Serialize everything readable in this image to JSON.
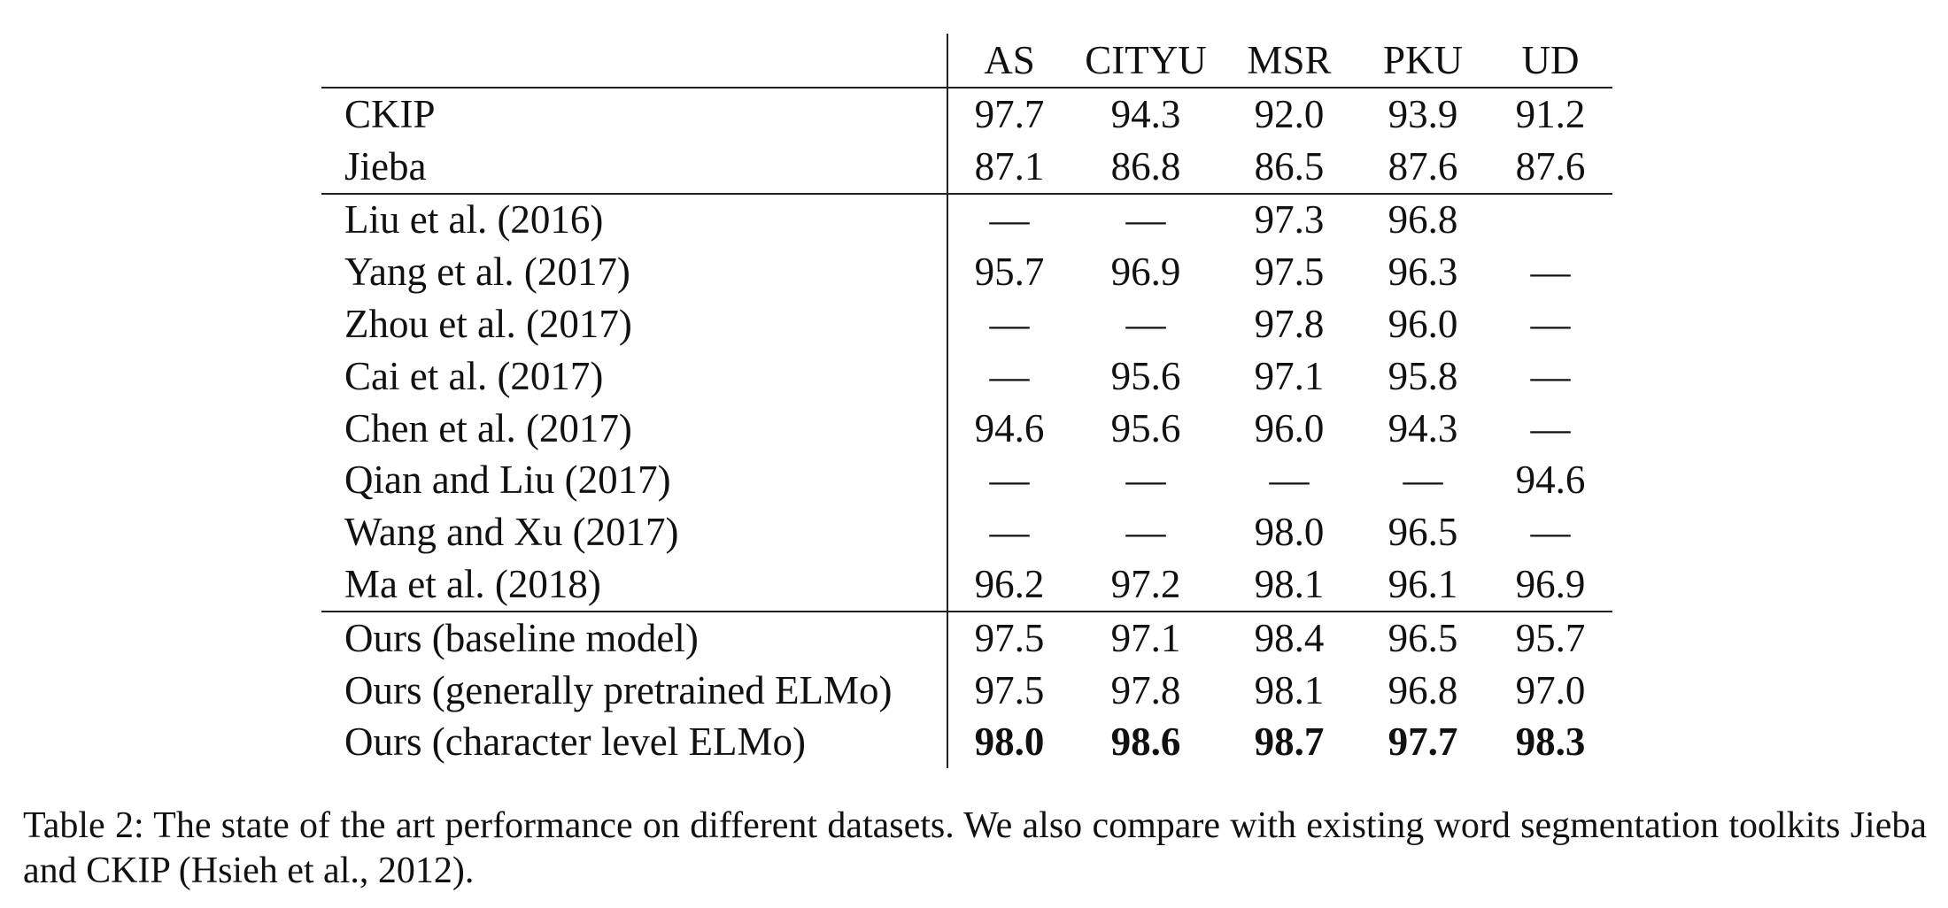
{
  "table": {
    "columns": [
      "AS",
      "CITYU",
      "MSR",
      "PKU",
      "UD"
    ],
    "groups": [
      {
        "rows": [
          {
            "name": "CKIP",
            "values": [
              "97.7",
              "94.3",
              "92.0",
              "93.9",
              "91.2"
            ]
          },
          {
            "name": "Jieba",
            "values": [
              "87.1",
              "86.8",
              "86.5",
              "87.6",
              "87.6"
            ]
          }
        ]
      },
      {
        "rows": [
          {
            "name": "Liu et al. (2016)",
            "values": [
              "—",
              "—",
              "97.3",
              "96.8",
              ""
            ]
          },
          {
            "name": "Yang et al. (2017)",
            "values": [
              "95.7",
              "96.9",
              "97.5",
              "96.3",
              "—"
            ]
          },
          {
            "name": "Zhou et al. (2017)",
            "values": [
              "—",
              "—",
              "97.8",
              "96.0",
              "—"
            ]
          },
          {
            "name": "Cai et al. (2017)",
            "values": [
              "—",
              "95.6",
              "97.1",
              "95.8",
              "—"
            ]
          },
          {
            "name": "Chen et al. (2017)",
            "values": [
              "94.6",
              "95.6",
              "96.0",
              "94.3",
              "—"
            ]
          },
          {
            "name": "Qian and Liu (2017)",
            "values": [
              "—",
              "—",
              "—",
              "—",
              "94.6"
            ]
          },
          {
            "name": "Wang and Xu (2017)",
            "values": [
              "—",
              "—",
              "98.0",
              "96.5",
              "—"
            ]
          },
          {
            "name": "Ma et al. (2018)",
            "values": [
              "96.2",
              "97.2",
              "98.1",
              "96.1",
              "96.9"
            ]
          }
        ]
      },
      {
        "rows": [
          {
            "name": "Ours (baseline model)",
            "values": [
              "97.5",
              "97.1",
              "98.4",
              "96.5",
              "95.7"
            ]
          },
          {
            "name": "Ours (generally pretrained ELMo)",
            "values": [
              "97.5",
              "97.8",
              "98.1",
              "96.8",
              "97.0"
            ]
          },
          {
            "name": "Ours (character level ELMo)",
            "values": [
              "98.0",
              "98.6",
              "98.7",
              "97.7",
              "98.3"
            ],
            "bold": true
          }
        ]
      }
    ]
  },
  "caption": "Table 2: The state of the art performance on different datasets. We also compare with existing word segmentation toolkits Jieba and CKIP (Hsieh et al., 2012)."
}
